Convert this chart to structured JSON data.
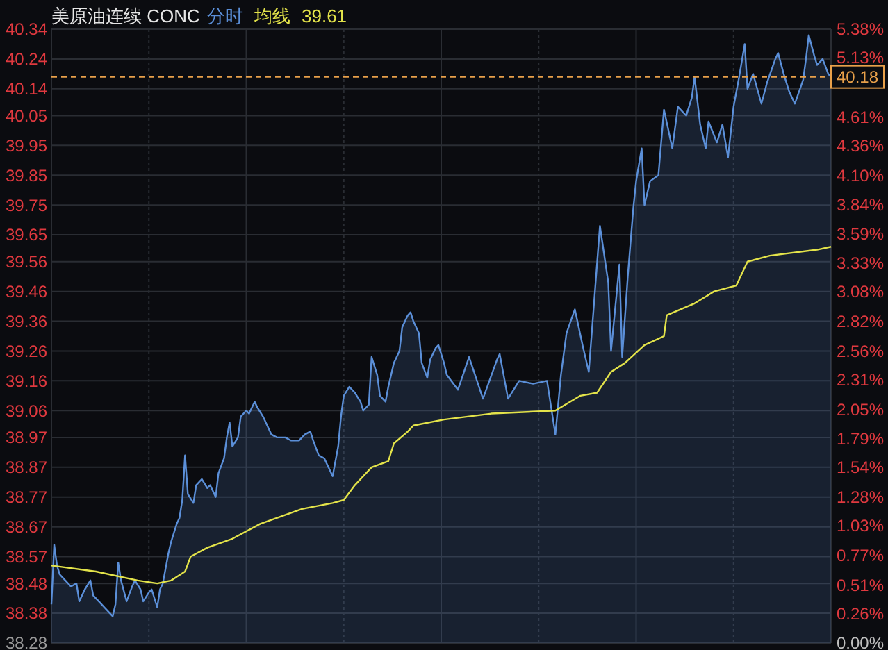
{
  "chart_data": {
    "type": "line",
    "title": "美原油连续 CONC",
    "annotations": [
      "39.61"
    ],
    "grid": true,
    "tick_labels": "y",
    "categories": [
      null,
      null,
      null,
      null,
      null,
      null,
      null,
      null,
      null,
      null,
      null,
      null,
      null,
      null,
      null,
      null,
      null,
      null,
      null,
      null,
      null,
      null,
      null,
      null,
      null,
      null,
      null,
      null,
      null,
      null,
      null,
      null,
      null,
      null,
      null,
      null,
      null,
      null,
      null,
      null,
      null,
      null,
      null,
      null,
      null,
      null,
      null,
      null,
      null,
      null,
      null,
      null,
      null,
      null,
      null,
      null,
      null,
      null,
      null,
      null,
      null,
      null,
      null,
      null,
      null,
      null,
      null,
      null,
      null,
      null,
      null,
      null,
      null,
      null,
      null,
      null,
      null,
      null,
      null,
      null,
      null,
      null,
      null,
      null,
      null,
      null,
      null,
      null,
      null,
      null,
      null,
      null,
      null,
      null,
      null,
      null,
      null,
      null,
      null,
      null,
      null,
      null,
      null,
      null,
      null,
      null,
      null,
      null,
      null,
      null,
      null,
      null,
      null,
      null,
      null,
      null,
      null,
      null,
      null,
      null,
      null,
      null,
      null,
      null,
      null,
      null,
      null,
      null,
      null,
      null,
      null,
      null,
      null,
      null,
      null,
      null,
      null,
      null,
      null,
      null,
      null,
      null,
      null,
      null,
      null,
      null,
      null,
      null,
      null,
      null,
      null,
      null,
      null,
      null,
      null,
      null,
      null,
      null,
      null,
      null,
      null,
      null,
      null,
      null,
      null,
      null,
      null,
      null,
      null,
      null,
      null,
      null,
      null,
      null,
      null,
      null,
      null,
      null,
      null,
      null,
      null,
      null,
      null,
      null,
      null,
      null,
      null,
      null,
      null,
      null,
      null,
      null,
      null,
      null,
      null,
      null,
      null,
      null,
      null,
      null,
      null,
      null,
      null,
      null,
      null,
      null,
      null,
      null,
      null,
      null,
      null,
      null,
      null,
      null,
      null,
      null,
      null,
      null,
      null,
      null,
      null,
      null,
      null,
      null,
      null,
      null,
      null,
      null,
      null,
      null,
      null,
      null,
      null,
      null,
      null,
      null,
      null,
      null,
      null,
      null,
      null,
      null,
      null,
      null,
      null,
      null,
      null,
      null,
      null,
      null,
      null,
      null,
      null,
      null,
      null,
      null,
      null,
      null,
      null,
      null,
      null,
      null,
      null,
      null,
      null,
      null,
      null,
      null,
      null,
      null,
      null,
      null,
      null,
      null,
      null,
      null,
      null,
      null,
      null,
      null,
      null
    ],
    "ylim": [
      38.28,
      40.34
    ],
    "yticks": [
      38.28,
      38.38,
      38.48,
      38.57,
      38.67,
      38.77,
      38.87,
      38.97,
      39.06,
      39.16,
      39.26,
      39.36,
      39.46,
      39.56,
      39.65,
      39.75,
      39.85,
      39.95,
      40.05,
      40.14,
      40.24,
      40.34
    ],
    "y2lim": [
      0,
      5.38
    ],
    "y2ticks": [
      {
        "value": 0,
        "label": "0.00%"
      },
      {
        "value": 0.26,
        "label": "0.26%"
      },
      {
        "value": 0.51,
        "label": "0.51%"
      },
      {
        "value": 0.77,
        "label": "0.77%"
      },
      {
        "value": 1.03,
        "label": "1.03%"
      },
      {
        "value": 1.28,
        "label": "1.28%"
      },
      {
        "value": 1.54,
        "label": "1.54%"
      },
      {
        "value": 1.79,
        "label": "1.79%"
      },
      {
        "value": 2.05,
        "label": "2.05%"
      },
      {
        "value": 2.31,
        "label": "2.31%"
      },
      {
        "value": 2.56,
        "label": "2.56%"
      },
      {
        "value": 2.82,
        "label": "2.82%"
      },
      {
        "value": 3.08,
        "label": "3.08%"
      },
      {
        "value": 3.33,
        "label": "3.33%"
      },
      {
        "value": 3.59,
        "label": "3.59%"
      },
      {
        "value": 3.84,
        "label": "3.84%"
      },
      {
        "value": 4.1,
        "label": "4.10%"
      },
      {
        "value": 4.36,
        "label": "4.36%"
      },
      {
        "value": 4.61,
        "label": "4.61%"
      },
      {
        "value": 5.13,
        "label": "5.13%"
      },
      {
        "value": 5.38,
        "label": "5.38%"
      }
    ],
    "ref_lines": [
      {
        "axis": "y",
        "value": 40.18,
        "label": "40.18",
        "color": "#e8a04a",
        "line_style": "dashed"
      }
    ],
    "series": [
      {
        "name": "分时",
        "type": "area",
        "color": "#5b8fd8",
        "values": [
          38.41,
          38.61,
          38.54,
          38.51,
          null,
          38.49,
          null,
          38.47,
          null,
          38.48,
          38.42,
          null,
          38.46,
          null,
          38.49,
          38.44,
          null,
          38.42,
          null,
          38.4,
          null,
          38.38,
          38.37,
          38.41,
          38.55,
          38.49,
          null,
          38.42,
          null,
          38.47,
          38.49,
          null,
          38.46,
          38.42,
          null,
          38.45,
          38.46,
          null,
          38.4,
          38.46,
          38.48,
          null,
          38.58,
          38.62,
          null,
          38.68,
          38.7,
          38.76,
          38.91,
          38.78,
          null,
          38.75,
          38.81,
          null,
          38.83,
          null,
          38.8,
          38.81,
          null,
          38.77,
          38.85,
          null,
          38.9,
          38.97,
          39.02,
          38.94,
          null,
          38.97,
          39.04,
          null,
          39.06,
          39.05,
          null,
          39.09,
          39.07,
          null,
          39.04,
          null,
          null,
          38.98,
          null,
          38.97,
          null,
          null,
          38.97,
          null,
          38.96,
          null,
          null,
          38.96,
          null,
          38.98,
          null,
          38.99,
          38.96,
          null,
          38.91,
          null,
          38.9,
          null,
          38.86,
          38.84,
          null,
          38.94,
          39.04,
          39.11,
          null,
          39.14,
          39.13,
          39.12,
          null,
          39.09,
          39.06,
          null,
          39.08,
          39.24,
          null,
          39.18,
          39.11,
          null,
          39.09,
          39.14,
          null,
          39.22,
          null,
          39.26,
          39.34,
          null,
          39.38,
          39.39,
          39.36,
          null,
          39.32,
          39.22,
          null,
          39.17,
          39.23,
          null,
          39.27,
          39.28,
          null,
          39.22,
          39.18,
          null,
          null,
          null,
          39.13,
          null,
          null,
          null,
          39.24,
          null,
          null,
          null,
          null,
          39.1,
          null,
          null,
          null,
          null,
          39.23,
          39.25,
          null,
          null,
          39.1,
          null,
          null,
          null,
          39.16,
          null,
          null,
          null,
          null,
          39.15,
          null,
          null,
          null,
          null,
          39.16,
          null,
          null,
          38.98,
          null,
          39.18,
          null,
          39.32,
          null,
          null,
          39.4,
          null,
          null,
          39.27,
          null,
          39.19,
          null,
          null,
          null,
          39.68,
          null,
          null,
          39.49,
          39.26,
          null,
          null,
          39.55,
          39.24,
          null,
          39.51,
          null,
          39.74,
          39.83,
          null,
          39.94,
          39.75,
          null,
          39.83,
          null,
          null,
          39.85,
          null,
          40.07,
          null,
          null,
          39.94,
          null,
          40.08,
          null,
          null,
          40.05,
          null,
          40.11,
          40.18,
          null,
          40.02,
          null,
          39.94,
          40.03,
          null,
          null,
          39.96,
          null,
          40.02,
          null,
          39.91,
          null,
          40.08,
          null,
          40.18,
          null,
          40.29,
          40.14,
          null,
          40.19,
          null,
          null,
          40.09,
          null,
          40.16,
          null,
          null,
          40.24,
          40.26,
          null,
          40.19,
          null,
          40.13,
          null,
          40.09,
          null,
          null,
          40.17,
          40.24,
          40.32,
          null,
          40.25,
          40.22,
          null,
          40.24,
          null,
          40.19,
          40.18
        ]
      },
      {
        "name": "均线",
        "color": "#e3e34a",
        "values": [
          38.54,
          null,
          null,
          null,
          null,
          null,
          null,
          null,
          null,
          null,
          null,
          null,
          null,
          null,
          null,
          null,
          38.52,
          null,
          null,
          null,
          null,
          null,
          null,
          null,
          null,
          null,
          null,
          null,
          null,
          null,
          null,
          38.49,
          null,
          null,
          null,
          null,
          null,
          null,
          38.48,
          null,
          null,
          null,
          null,
          38.49,
          null,
          null,
          null,
          null,
          38.52,
          null,
          38.57,
          null,
          null,
          null,
          null,
          null,
          38.6,
          null,
          null,
          null,
          null,
          null,
          null,
          null,
          null,
          38.63,
          null,
          null,
          null,
          null,
          null,
          null,
          null,
          null,
          null,
          38.68,
          null,
          null,
          null,
          null,
          null,
          null,
          null,
          null,
          null,
          null,
          null,
          null,
          null,
          null,
          38.73,
          null,
          null,
          null,
          null,
          null,
          null,
          null,
          null,
          null,
          null,
          38.75,
          null,
          null,
          null,
          38.76,
          null,
          null,
          null,
          38.81,
          null,
          null,
          null,
          null,
          null,
          38.87,
          null,
          null,
          null,
          null,
          null,
          38.89,
          null,
          38.95,
          null,
          null,
          null,
          null,
          38.99,
          null,
          39.01,
          null,
          null,
          null,
          null,
          null,
          null,
          null,
          null,
          null,
          null,
          39.03,
          null,
          null,
          null,
          null,
          null,
          null,
          null,
          null,
          null,
          null,
          null,
          null,
          null,
          null,
          null,
          null,
          39.05,
          null,
          null,
          null,
          null,
          null,
          null,
          null,
          null,
          null,
          null,
          null,
          null,
          null,
          null,
          null,
          null,
          null,
          null,
          null,
          null,
          null,
          null,
          39.06,
          null,
          null,
          null,
          null,
          null,
          null,
          null,
          null,
          39.11,
          null,
          null,
          null,
          null,
          null,
          39.12,
          null,
          null,
          null,
          null,
          39.19,
          null,
          null,
          null,
          null,
          39.22,
          null,
          null,
          null,
          null,
          null,
          null,
          39.28,
          null,
          null,
          null,
          null,
          null,
          null,
          39.31,
          39.38,
          null,
          null,
          null,
          null,
          null,
          null,
          null,
          null,
          null,
          39.42,
          null,
          null,
          null,
          null,
          null,
          null,
          39.46,
          null,
          null,
          null,
          null,
          null,
          null,
          null,
          39.48,
          null,
          null,
          null,
          39.56,
          null,
          null,
          null,
          null,
          null,
          null,
          null,
          39.58,
          null,
          null,
          null,
          null,
          null,
          null,
          null,
          null,
          null,
          null,
          null,
          null,
          null,
          null,
          null,
          null,
          39.6,
          null,
          null,
          null,
          null,
          39.61
        ]
      }
    ]
  }
}
